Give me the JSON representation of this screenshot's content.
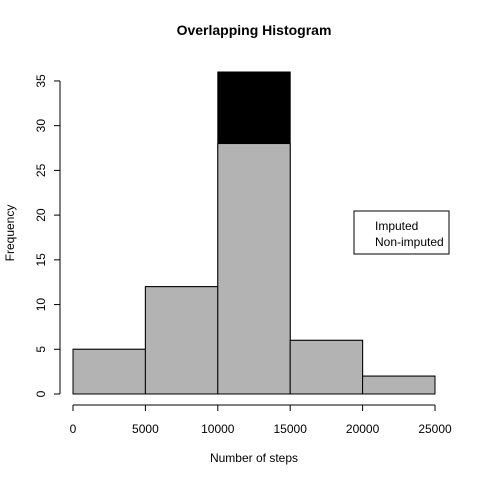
{
  "chart_data": {
    "type": "bar",
    "title": "Overlapping Histogram",
    "xlabel": "Number of steps",
    "ylabel": "Frequency",
    "bin_edges": [
      0,
      5000,
      10000,
      15000,
      20000,
      25000
    ],
    "xlim": [
      0,
      25000
    ],
    "ylim": [
      0,
      36
    ],
    "x_ticks": [
      0,
      5000,
      10000,
      15000,
      20000,
      25000
    ],
    "y_ticks": [
      0,
      5,
      10,
      15,
      20,
      25,
      30,
      35
    ],
    "series": [
      {
        "name": "Imputed",
        "color": "#000000",
        "values": [
          5,
          12,
          36,
          6,
          2
        ]
      },
      {
        "name": "Non-imputed",
        "color": "#b3b3b3",
        "values": [
          5,
          12,
          28,
          6,
          2
        ]
      }
    ],
    "legend": {
      "position": "right",
      "entries": [
        "Imputed",
        "Non-imputed"
      ]
    },
    "grid": false
  }
}
